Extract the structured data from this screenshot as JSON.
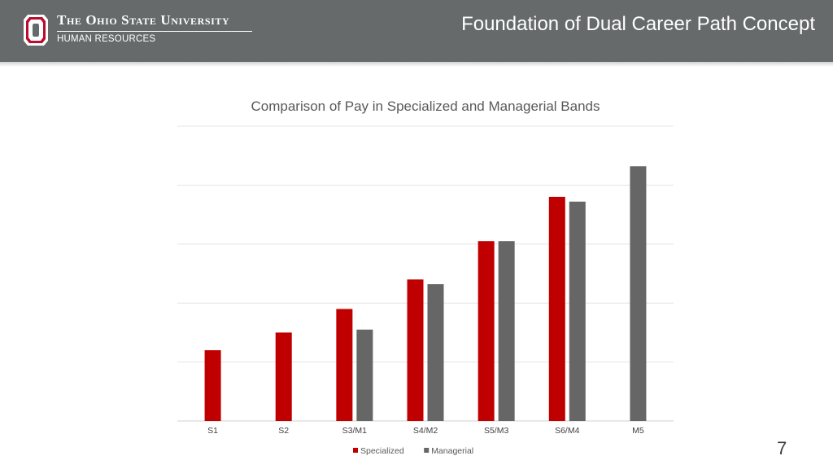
{
  "header": {
    "university": "The Ohio State University",
    "department": "HUMAN RESOURCES",
    "slide_title": "Foundation of Dual Career Path Concept",
    "colors": {
      "bar": "#666a6b",
      "logo_red": "#ba0c2f"
    }
  },
  "footer": {
    "page_number": "7"
  },
  "chart_data": {
    "type": "bar",
    "title": "Comparison of Pay in Specialized and Managerial Bands",
    "xlabel": "",
    "ylabel": "",
    "categories": [
      "S1",
      "S2",
      "S3/M1",
      "S4/M2",
      "S5/M3",
      "S6/M4",
      "M5"
    ],
    "series": [
      {
        "name": "Specialized",
        "color": "#c00000",
        "values": [
          1.2,
          1.5,
          1.9,
          2.4,
          3.05,
          3.8,
          null
        ]
      },
      {
        "name": "Managerial",
        "color": "#666666",
        "values": [
          null,
          null,
          1.55,
          2.32,
          3.05,
          3.72,
          4.32
        ]
      }
    ],
    "ylim": [
      0,
      5
    ],
    "y_gridlines": [
      0,
      1,
      2,
      3,
      4,
      5
    ],
    "y_tick_labels_shown": false,
    "grid": true,
    "legend_position": "bottom"
  }
}
